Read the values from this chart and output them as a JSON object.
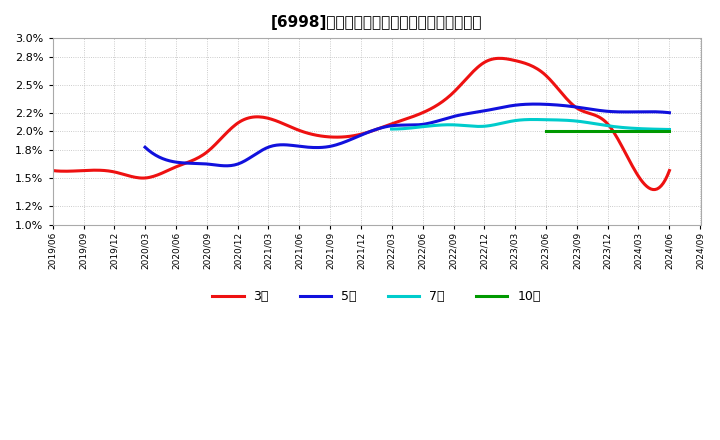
{
  "title": "[6998]　経常利益マージンの標準偏差の推移",
  "background_color": "#ffffff",
  "grid_color": "#bbbbbb",
  "ylim": [
    0.01,
    0.03
  ],
  "yticks": [
    0.01,
    0.012,
    0.015,
    0.018,
    0.02,
    0.022,
    0.025,
    0.028,
    0.03
  ],
  "ytick_labels": [
    "1.0%",
    "1.2%",
    "1.5%",
    "1.8%",
    "2.0%",
    "2.2%",
    "2.5%",
    "2.8%",
    "3.0%"
  ],
  "legend_labels": [
    "3年",
    "5年",
    "7年",
    "10年"
  ],
  "legend_colors": [
    "#ee1111",
    "#1111dd",
    "#00cccc",
    "#009900"
  ],
  "series": {
    "3y": {
      "color": "#ee1111",
      "lw": 2.2,
      "points": [
        [
          "2019-06",
          0.0158
        ],
        [
          "2019-09",
          0.0158
        ],
        [
          "2019-12",
          0.01565
        ],
        [
          "2020-03",
          0.015
        ],
        [
          "2020-06",
          0.0162
        ],
        [
          "2020-09",
          0.0178
        ],
        [
          "2020-12",
          0.0209
        ],
        [
          "2021-03",
          0.0214
        ],
        [
          "2021-06",
          0.0201
        ],
        [
          "2021-09",
          0.0194
        ],
        [
          "2021-12",
          0.0197
        ],
        [
          "2022-03",
          0.0208
        ],
        [
          "2022-06",
          0.022
        ],
        [
          "2022-09",
          0.0242
        ],
        [
          "2022-12",
          0.0274
        ],
        [
          "2023-03",
          0.0276
        ],
        [
          "2023-06",
          0.026
        ],
        [
          "2023-09",
          0.0225
        ],
        [
          "2023-12",
          0.0208
        ],
        [
          "2024-03",
          0.0152
        ],
        [
          "2024-06",
          0.0158
        ]
      ]
    },
    "5y": {
      "color": "#1111dd",
      "lw": 2.2,
      "points": [
        [
          "2020-03",
          0.0183
        ],
        [
          "2020-06",
          0.0167
        ],
        [
          "2020-09",
          0.0165
        ],
        [
          "2020-12",
          0.0165
        ],
        [
          "2021-03",
          0.0183
        ],
        [
          "2021-06",
          0.0184
        ],
        [
          "2021-09",
          0.0184
        ],
        [
          "2021-12",
          0.0196
        ],
        [
          "2022-03",
          0.0206
        ],
        [
          "2022-06",
          0.02075
        ],
        [
          "2022-09",
          0.0216
        ],
        [
          "2022-12",
          0.0222
        ],
        [
          "2023-03",
          0.0228
        ],
        [
          "2023-06",
          0.0229
        ],
        [
          "2023-09",
          0.0226
        ],
        [
          "2023-12",
          0.02215
        ],
        [
          "2024-03",
          0.0221
        ],
        [
          "2024-06",
          0.022
        ]
      ]
    },
    "7y": {
      "color": "#00cccc",
      "lw": 2.2,
      "points": [
        [
          "2022-03",
          0.02025
        ],
        [
          "2022-06",
          0.0205
        ],
        [
          "2022-09",
          0.0207
        ],
        [
          "2022-12",
          0.02055
        ],
        [
          "2023-03",
          0.02115
        ],
        [
          "2023-06",
          0.02125
        ],
        [
          "2023-09",
          0.0211
        ],
        [
          "2023-12",
          0.0206
        ],
        [
          "2024-03",
          0.0203
        ],
        [
          "2024-06",
          0.0202
        ]
      ]
    },
    "10y": {
      "color": "#009900",
      "lw": 2.2,
      "points": [
        [
          "2023-06",
          0.02
        ],
        [
          "2023-09",
          0.02
        ],
        [
          "2023-12",
          0.02
        ],
        [
          "2024-03",
          0.02
        ],
        [
          "2024-06",
          0.02
        ]
      ]
    }
  },
  "xtick_dates": [
    "2019/06",
    "2019/09",
    "2019/12",
    "2020/03",
    "2020/06",
    "2020/09",
    "2020/12",
    "2021/03",
    "2021/06",
    "2021/09",
    "2021/12",
    "2022/03",
    "2022/06",
    "2022/09",
    "2022/12",
    "2023/03",
    "2023/06",
    "2023/09",
    "2023/12",
    "2024/03",
    "2024/06",
    "2024/09"
  ]
}
